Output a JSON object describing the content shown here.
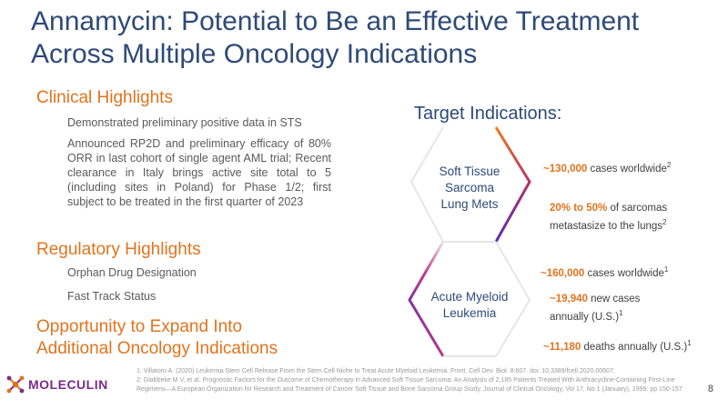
{
  "title_line1": "Annamycin: Potential to Be an Effective Treatment",
  "title_line2": "Across Multiple Oncology Indications",
  "clinical": {
    "heading": "Clinical Highlights",
    "item1": "Demonstrated preliminary positive data in STS",
    "item2": "Announced RP2D and preliminary efficacy of 80% ORR in last cohort of single agent AML trial; Recent clearance in Italy brings active site total to 5 (including sites in Poland) for Phase 1/2; first subject to be treated in the first quarter of 2023"
  },
  "regulatory": {
    "heading": "Regulatory Highlights",
    "item1": "Orphan Drug Designation",
    "item2": "Fast Track Status"
  },
  "opportunity": {
    "line1": "Opportunity to Expand Into",
    "line2": "Additional Oncology Indications"
  },
  "target": {
    "title": "Target Indications:",
    "sts_line1": "Soft Tissue",
    "sts_line2": "Sarcoma",
    "sts_line3": "Lung Mets",
    "aml_line1": "Acute Myeloid",
    "aml_line2": "Leukemia"
  },
  "stats": {
    "s1_num": "~130,000",
    "s1_text": " cases worldwide",
    "s1_sup": "2",
    "s2_num": "20% to 50%",
    "s2_text": " of sarcomas",
    "s2_line2": "metastasize to the lungs",
    "s2_sup": "2",
    "s3_num": "~160,000",
    "s3_text": " cases worldwide",
    "s3_sup": "1",
    "s4_num": "~19,940",
    "s4_text": " new cases",
    "s4_line2": "annually (U.S.)",
    "s4_sup": "1",
    "s5_num": "~11,180",
    "s5_text": " deaths annually (U.S.)",
    "s5_sup": "1"
  },
  "footnote1": "1: Villatoro A. (2020) Leukemia Stem Cell Release From the Stem Cell Niche to Treat Acute Myeloid Leukemia. Front. Cell Dev. Biol. 8:607. doi: 10.3389/fcell.2020.00607;",
  "footnote2": "2: Glabbeke M V, et al. Prognostic Factors for the Outcome of Chemotherapy in Advanced Soft Tissue Sarcoma: An Analysis of 2,185 Patients Treated With Anthracycline-Containing First-Line Regimens—A European Organization for Research and Treatment of Cancer Soft Tissue and Bone Sarcoma Group Study. Journal of Clinical Oncology, Vol 17, No 1 (January), 1999: pp 150-157",
  "logo_text": "MOLECULIN",
  "page_number": "8",
  "colors": {
    "title": "#2e4a78",
    "accent": "#e2731d",
    "hex_purple": "#5b2fb0"
  }
}
